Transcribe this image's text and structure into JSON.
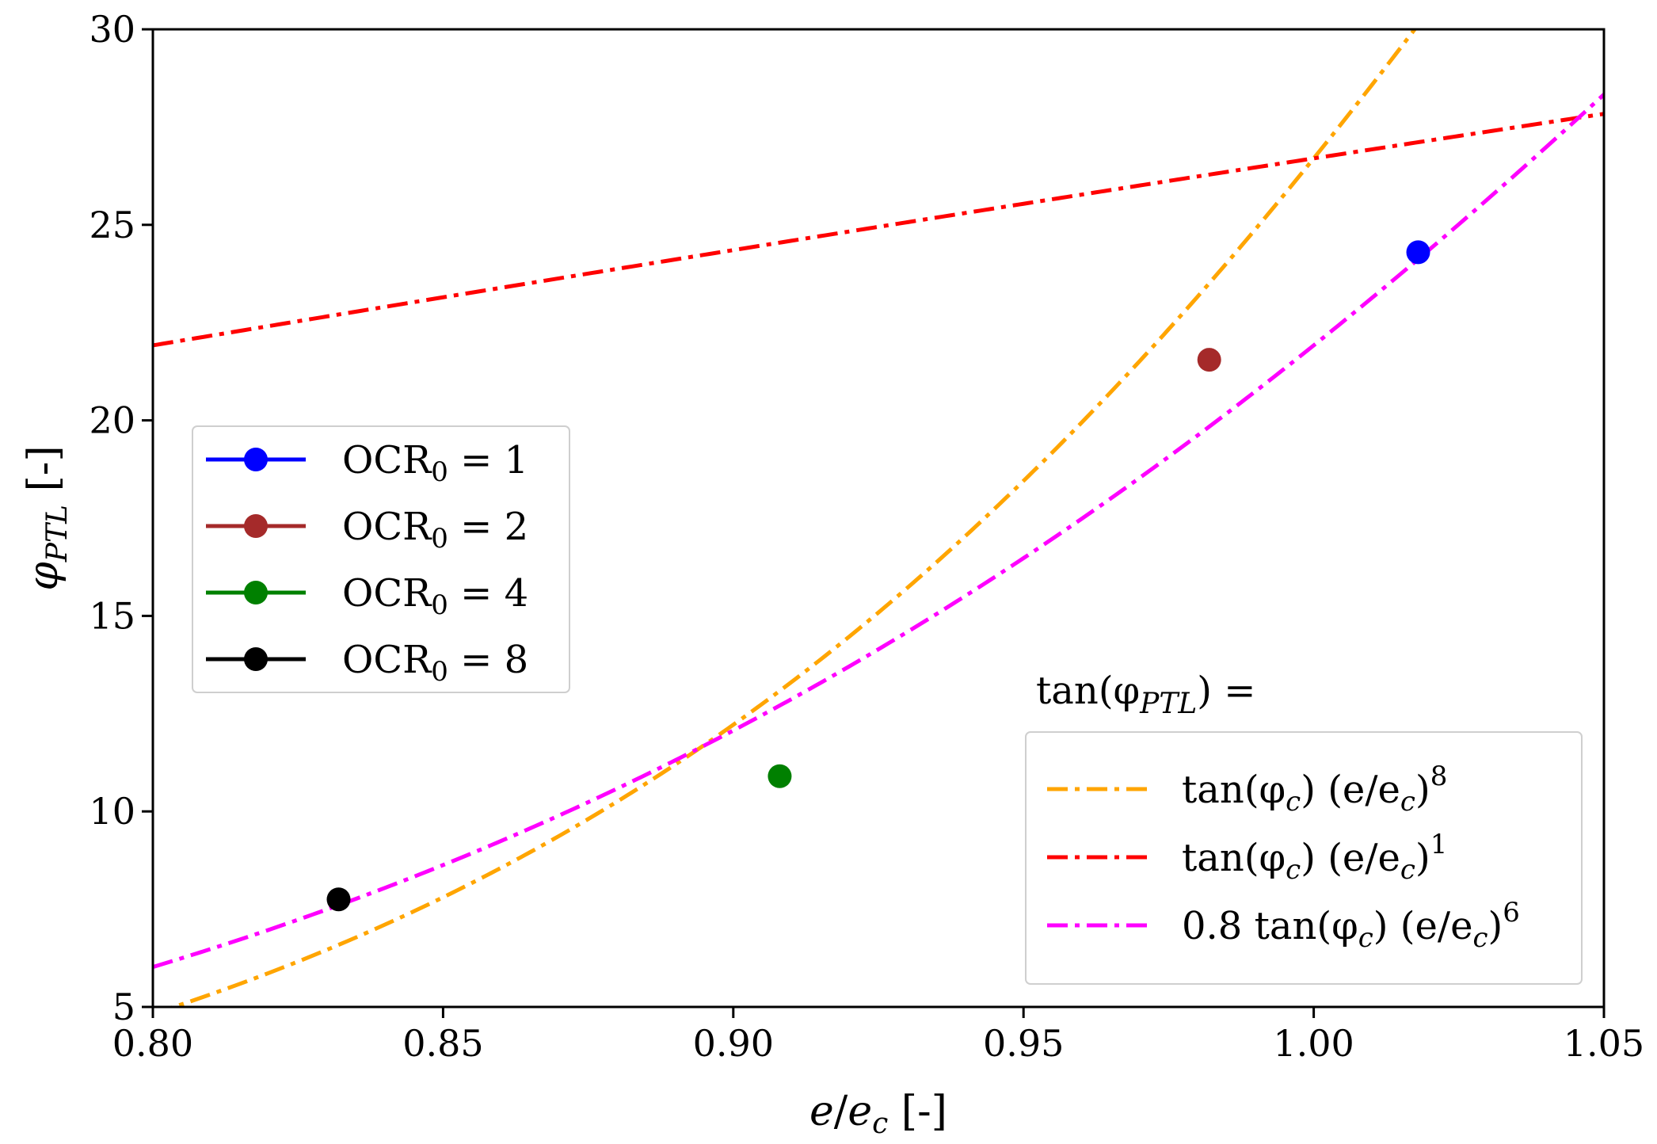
{
  "chart_data": {
    "type": "scatter",
    "xlabel": "e/e_c [-]",
    "ylabel": "φ_PTL [-]",
    "xlim": [
      0.8,
      1.05
    ],
    "ylim": [
      5,
      30
    ],
    "xticks": [
      0.8,
      0.85,
      0.9,
      0.95,
      1.0,
      1.05
    ],
    "xtick_labels": [
      "0.80",
      "0.85",
      "0.90",
      "0.95",
      "1.00",
      "1.05"
    ],
    "yticks": [
      5,
      10,
      15,
      20,
      25,
      30
    ],
    "ytick_labels": [
      "5",
      "10",
      "15",
      "20",
      "25",
      "30"
    ],
    "grid": false,
    "points": [
      {
        "name": "OCR₀ = 1",
        "x": 1.018,
        "y": 24.3,
        "color": "#0000ff"
      },
      {
        "name": "OCR₀ = 2",
        "x": 0.982,
        "y": 21.55,
        "color": "#a52a2a"
      },
      {
        "name": "OCR₀ = 4",
        "x": 0.908,
        "y": 10.9,
        "color": "#008000"
      },
      {
        "name": "OCR₀ = 8",
        "x": 0.832,
        "y": 7.75,
        "color": "#000000"
      }
    ],
    "fits": [
      {
        "name": "tan(φc) (e/ec)^8",
        "label_main": "tan(φ",
        "label_sub": "c",
        "label_mid": ") (e/e",
        "label_sub2": "c",
        "label_close": ")",
        "exponent": "8",
        "coefficient": 1.0,
        "power": 8,
        "color": "#ffa500"
      },
      {
        "name": "tan(φc) (e/ec)^1",
        "label_main": "tan(φ",
        "label_sub": "c",
        "label_mid": ") (e/e",
        "label_sub2": "c",
        "label_close": ")",
        "exponent": "1",
        "coefficient": 1.0,
        "power": 1,
        "color": "#ff0000"
      },
      {
        "name": "0.8 tan(φc) (e/ec)^6",
        "label_main": "0.8 tan(φ",
        "label_sub": "c",
        "label_mid": ") (e/e",
        "label_sub2": "c",
        "label_close": ")",
        "exponent": "6",
        "coefficient": 0.8,
        "power": 6,
        "color": "#ff00ff"
      }
    ],
    "phi_c_deg": 26.7,
    "fit_legend_title": {
      "main": "tan(φ",
      "sub": "PTL",
      "close": ") ="
    },
    "legend_points_position": "center-left",
    "legend_fits_position": "lower-right"
  }
}
